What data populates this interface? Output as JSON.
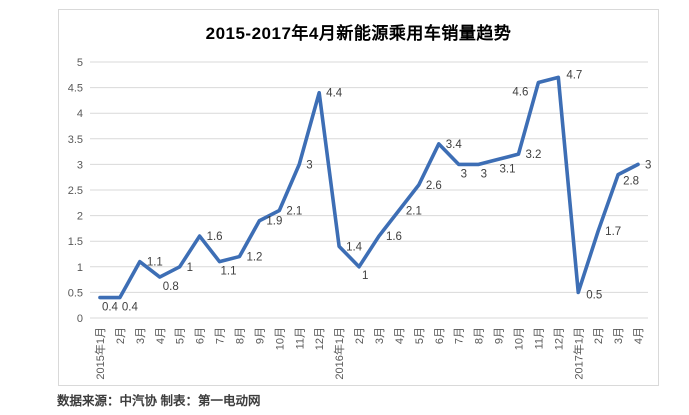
{
  "page": {
    "background": "#ffffff"
  },
  "chart_frame": {
    "border_color": "#d9d9d9"
  },
  "chart_data": {
    "type": "line",
    "title": "2015-2017年4月新能源乘用车销量趋势",
    "categories": [
      "2015年1月",
      "2月",
      "3月",
      "4月",
      "5月",
      "6月",
      "7月",
      "8月",
      "9月",
      "10月",
      "11月",
      "12月",
      "2016年1月",
      "2月",
      "3月",
      "4月",
      "5月",
      "6月",
      "7月",
      "8月",
      "9月",
      "10月",
      "11月",
      "12月",
      "2017年1月",
      "2月",
      "3月",
      "4月"
    ],
    "values": [
      0.4,
      0.4,
      1.1,
      0.8,
      1,
      1.6,
      1.1,
      1.2,
      1.9,
      2.1,
      3,
      4.4,
      1.4,
      1,
      1.6,
      2.1,
      2.6,
      3.4,
      3,
      3,
      3.1,
      3.2,
      4.6,
      4.7,
      0.5,
      1.7,
      2.8,
      3
    ],
    "xlabel": "",
    "ylabel": "",
    "ylim": [
      0,
      5
    ],
    "ytick_step": 0.5,
    "grid": true,
    "legend_position": "none",
    "x_labels_rotated": true,
    "line_color": "#3d6eb5",
    "grid_color": "#d9d9d9",
    "axis_text_color": "#595959",
    "label_text_color": "#404040",
    "label_offsets": {
      "0": [
        2,
        13
      ],
      "1": [
        2,
        13
      ],
      "3": [
        3,
        13
      ],
      "6": [
        1,
        13
      ],
      "13": [
        3,
        12
      ],
      "18": [
        2,
        13
      ],
      "19": [
        2,
        13
      ],
      "20": [
        1,
        13
      ],
      "22": [
        -26,
        13
      ],
      "23": [
        8,
        1
      ],
      "24": [
        8,
        6
      ],
      "26": [
        5,
        10
      ]
    }
  },
  "footer": {
    "text": "数据来源：中汽协 制表：第一电动网"
  }
}
